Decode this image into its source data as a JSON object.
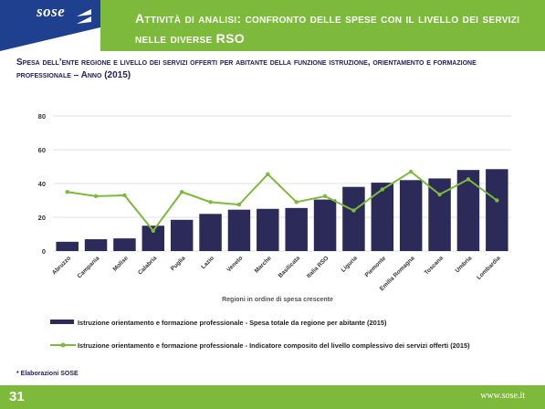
{
  "header": {
    "logo": "sose",
    "title": "Attività di analisi: confronto delle spese con il livello dei servizi nelle diverse RSO"
  },
  "subtitle": "Spesa dell’ente regione e livello dei servizi offerti per abitante della funzione istruzione, orientamento e formazione professionale – Anno (2015)",
  "colors": {
    "bar": "#2b2a59",
    "line": "#7dba3c",
    "header": "#7dba3c"
  },
  "chart_data": {
    "type": "bar",
    "categories": [
      "Abruzzo",
      "Campania",
      "Molise",
      "Calabria",
      "Puglia",
      "Lazio",
      "Veneto",
      "Marche",
      "Basilicata",
      "Italia RSO",
      "Liguria",
      "Piemonte",
      "Emilia Romagna",
      "Toscana",
      "Umbria",
      "Lombardia"
    ],
    "series": [
      {
        "name": "Istruzione orientamento e formazione professionale - Spesa totale da regione per abitante (2015)",
        "type": "bar",
        "values": [
          5.5,
          7,
          7.5,
          15,
          18.5,
          22,
          24.5,
          25,
          25.5,
          30.5,
          38,
          40.5,
          42,
          43,
          48,
          48.5
        ]
      },
      {
        "name": "Istruzione orientamento e formazione professionale - Indicatore composito del livello complessivo dei servizi offerti (2015)",
        "type": "line",
        "values": [
          35,
          32.5,
          33,
          12,
          35,
          29,
          27.5,
          45.5,
          29,
          32.5,
          24,
          36.5,
          47,
          33.5,
          42.5,
          30
        ]
      }
    ],
    "ylim": [
      0,
      80
    ],
    "yticks": [
      0,
      20,
      40,
      60,
      80
    ],
    "xlabel": "Regioni in ordine di spesa crescente",
    "ylabel": "",
    "legend_position": "bottom",
    "grid": true
  },
  "legend": {
    "bar_label": "Istruzione orientamento e formazione professionale - Spesa totale da regione per abitante (2015)",
    "line_label": "Istruzione orientamento e formazione professionale - Indicatore composito del livello complessivo dei servizi offerti (2015)"
  },
  "note": "* Elaborazioni SOSE",
  "footer": {
    "page": "31",
    "site": "www.sose.it"
  }
}
